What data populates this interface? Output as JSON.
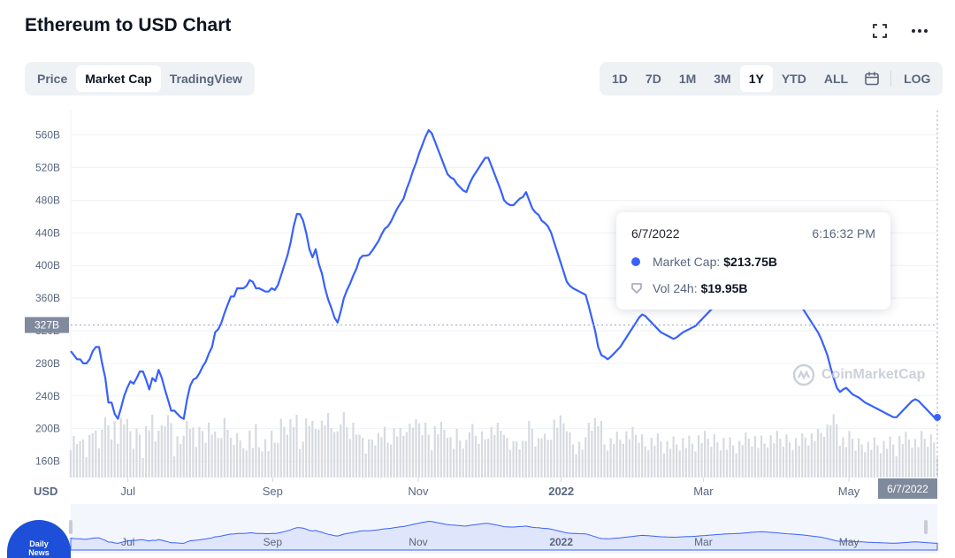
{
  "header": {
    "title": "Ethereum to USD Chart"
  },
  "icons": {
    "fullscreen": "fullscreen-icon",
    "more": "more-icon",
    "calendar": "calendar-icon",
    "logo": "coinmarketcap-logo"
  },
  "tabs": {
    "items": [
      "Price",
      "Market Cap",
      "TradingView"
    ],
    "active": "Market Cap"
  },
  "ranges": {
    "items": [
      "1D",
      "7D",
      "1M",
      "3M",
      "1Y",
      "YTD",
      "ALL"
    ],
    "active": "1Y",
    "log_label": "LOG"
  },
  "tooltip": {
    "date": "6/7/2022",
    "time": "6:16:32 PM",
    "market_cap_label": "Market Cap:",
    "market_cap_value": "$213.75B",
    "volume_label": "Vol 24h:",
    "volume_value": "$19.95B"
  },
  "watermark": {
    "text": "CoinMarketCap"
  },
  "badge": {
    "line1": "Daily",
    "line2": "News"
  },
  "colors": {
    "line": "#3861fb",
    "volume": "#d7dae0",
    "navigator_fill": "#dfe5fb"
  },
  "chart_data": {
    "type": "line",
    "series": [
      {
        "name": "Market Cap",
        "x_start": "2021-06-07",
        "x_end": "2022-06-07",
        "values": [
          295,
          290,
          285,
          285,
          280,
          280,
          285,
          295,
          300,
          300,
          280,
          262,
          232,
          232,
          218,
          212,
          225,
          240,
          250,
          258,
          255,
          262,
          270,
          270,
          260,
          248,
          262,
          258,
          272,
          262,
          248,
          235,
          222,
          222,
          218,
          214,
          212,
          235,
          252,
          260,
          262,
          268,
          276,
          282,
          292,
          300,
          318,
          322,
          330,
          342,
          352,
          362,
          362,
          372,
          372,
          372,
          375,
          382,
          380,
          372,
          372,
          370,
          368,
          368,
          372,
          370,
          376,
          388,
          400,
          412,
          428,
          448,
          463,
          463,
          455,
          440,
          420,
          410,
          420,
          402,
          390,
          372,
          358,
          348,
          336,
          330,
          344,
          360,
          370,
          378,
          388,
          396,
          408,
          412,
          412,
          413,
          418,
          424,
          430,
          438,
          445,
          448,
          454,
          462,
          470,
          476,
          482,
          494,
          504,
          516,
          526,
          538,
          548,
          558,
          566,
          562,
          552,
          542,
          532,
          522,
          512,
          508,
          506,
          500,
          496,
          492,
          490,
          500,
          508,
          514,
          520,
          526,
          532,
          532,
          522,
          512,
          502,
          492,
          480,
          476,
          474,
          474,
          478,
          482,
          484,
          490,
          480,
          470,
          465,
          462,
          455,
          452,
          448,
          440,
          428,
          416,
          404,
          392,
          380,
          375,
          372,
          370,
          368,
          366,
          364,
          350,
          335,
          320,
          300,
          290,
          288,
          285,
          288,
          292,
          296,
          300,
          306,
          312,
          318,
          324,
          330,
          336,
          340,
          338,
          334,
          330,
          326,
          322,
          318,
          316,
          314,
          312,
          310,
          312,
          315,
          318,
          320,
          322,
          324,
          326,
          330,
          334,
          338,
          342,
          346,
          350,
          354,
          358,
          362,
          364,
          366,
          368,
          370,
          372,
          376,
          380,
          385,
          390,
          394,
          396,
          398,
          396,
          392,
          388,
          384,
          380,
          376,
          372,
          368,
          364,
          360,
          356,
          352,
          348,
          342,
          336,
          330,
          324,
          318,
          310,
          300,
          290,
          275,
          262,
          250,
          245,
          248,
          250,
          246,
          242,
          240,
          238,
          235,
          232,
          230,
          228,
          226,
          224,
          222,
          220,
          218,
          216,
          214,
          214,
          218,
          222,
          226,
          230,
          234,
          236,
          234,
          230,
          226,
          222,
          218,
          214,
          213.75
        ]
      }
    ],
    "x_ticks": [
      "Jul",
      "Sep",
      "Nov",
      "2022",
      "Mar",
      "May"
    ],
    "y_ticks": [
      "160B",
      "200B",
      "240B",
      "280B",
      "320B",
      "360B",
      "400B",
      "440B",
      "480B",
      "520B",
      "560B"
    ],
    "ylim": [
      140,
      590
    ],
    "y_unit": "USD",
    "crosshair": {
      "y_value": 327,
      "y_label": "327B",
      "x_label": "6/7/2022"
    }
  }
}
